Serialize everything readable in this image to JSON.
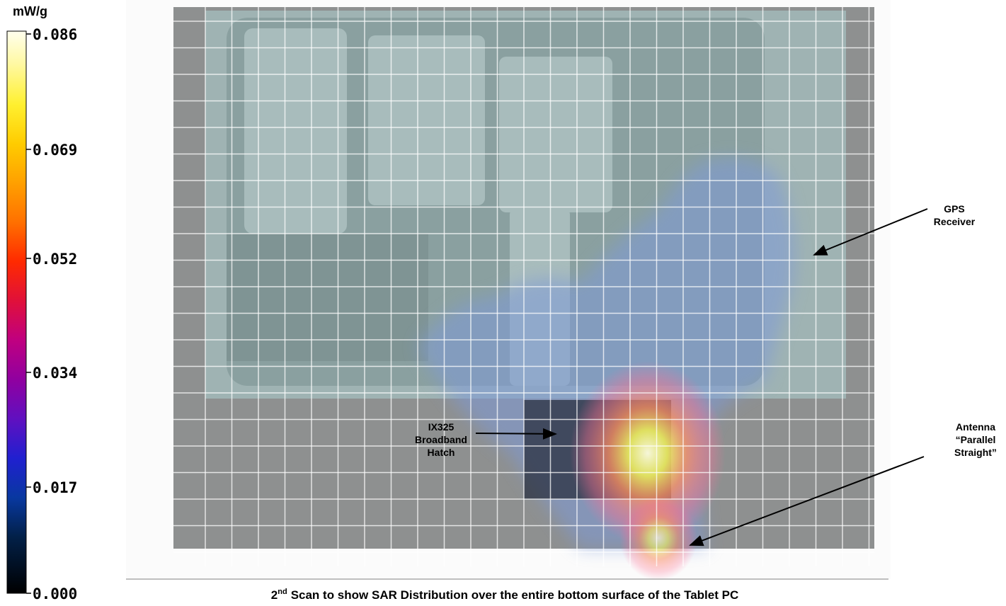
{
  "colorbar": {
    "unit": "mW/g",
    "ticks": [
      "0.086",
      "0.069",
      "0.052",
      "0.034",
      "0.017",
      "0.000"
    ]
  },
  "annotations": [
    {
      "lines": [
        "GPS",
        "Receiver"
      ]
    },
    {
      "lines": [
        "Antenna",
        "“Parallel",
        "Straight”"
      ]
    },
    {
      "lines": [
        "IX325",
        "Broadband",
        "Hatch"
      ]
    }
  ],
  "caption": {
    "number": "2",
    "superscript": "nd",
    "text": "Scan to show SAR Distribution over the entire bottom surface of the Tablet PC"
  }
}
